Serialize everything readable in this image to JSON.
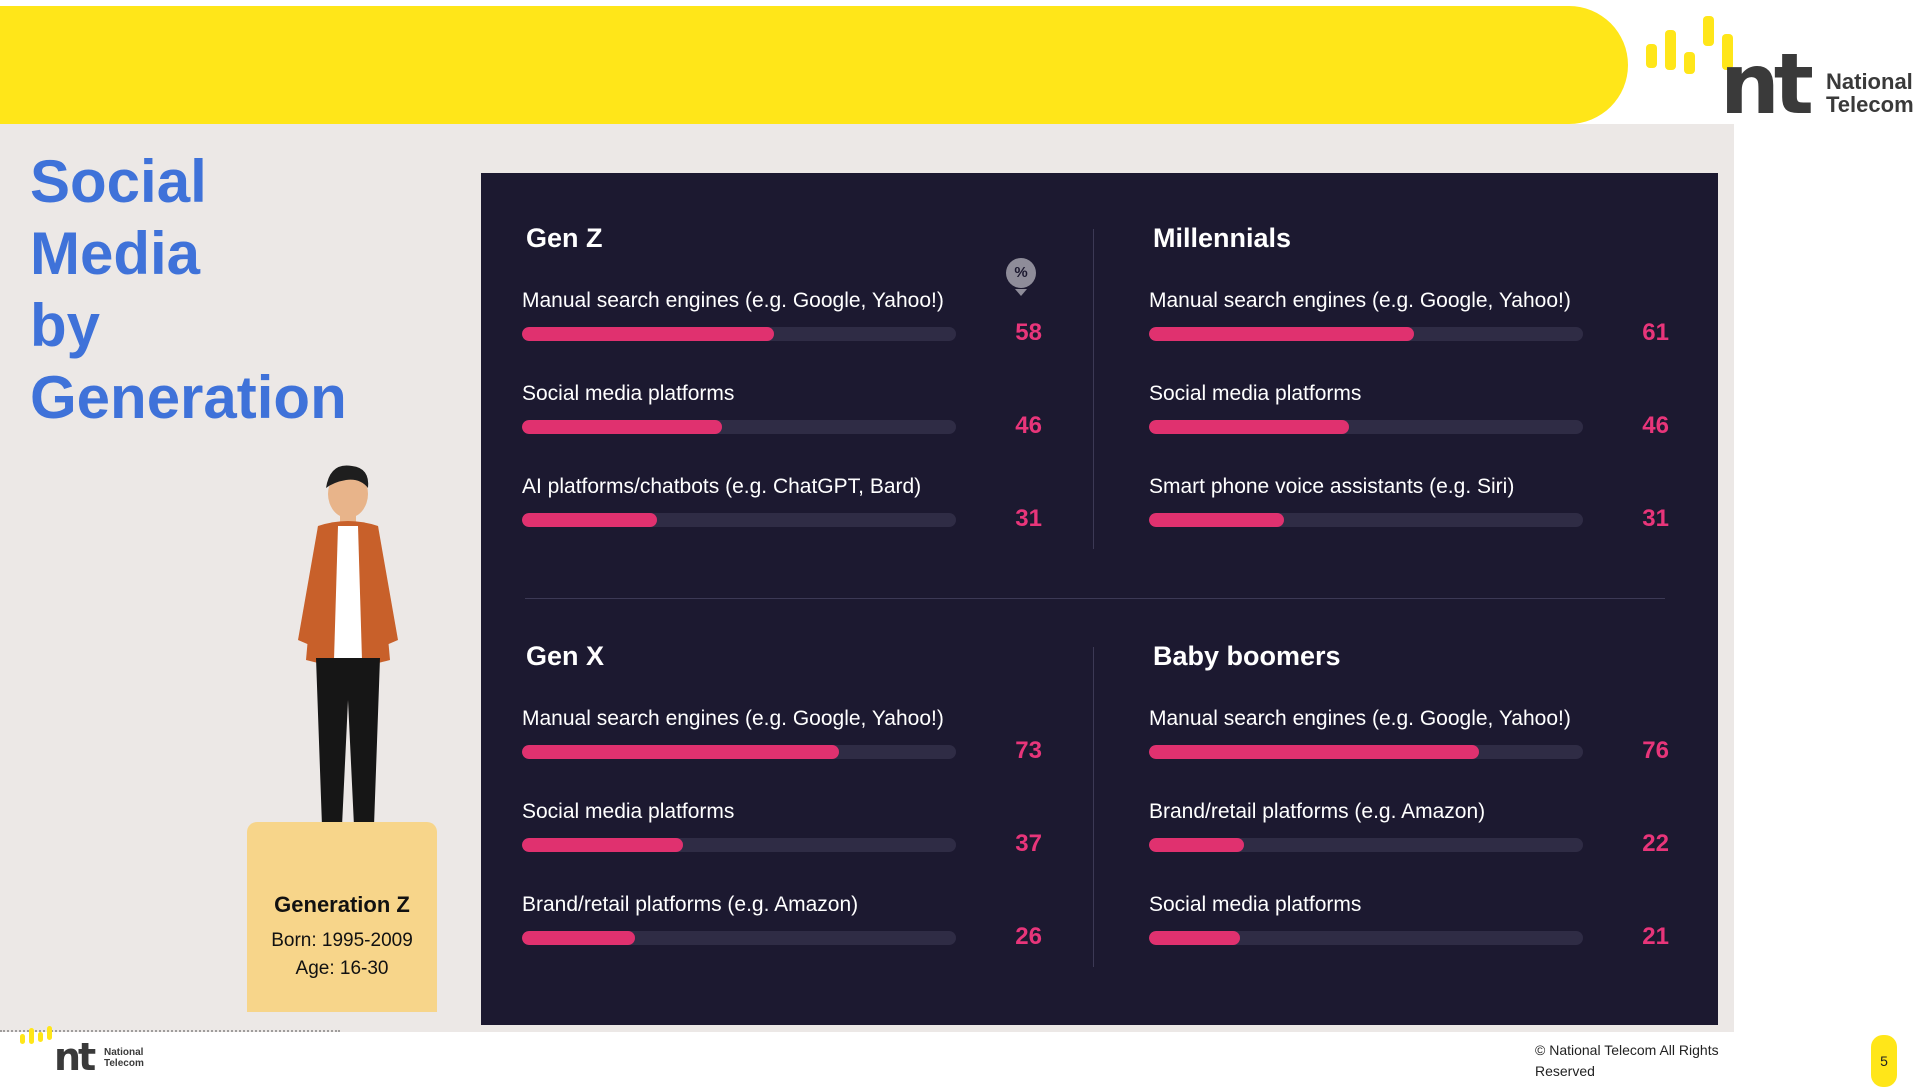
{
  "brand": {
    "line1": "National",
    "line2": "Telecom",
    "mark": "nt"
  },
  "title": {
    "lines": [
      "Social",
      "Media",
      "by",
      "Generation"
    ]
  },
  "persona": {
    "title": "Generation Z",
    "born": "Born: 1995-2009",
    "age": "Age: 16-30"
  },
  "unit_badge": "%",
  "footer": {
    "copyright": "© National Telecom All Rights Reserved",
    "page": "5"
  },
  "colors": {
    "accent_yellow": "#FFE619",
    "title_blue": "#3F72D9",
    "panel_bg": "#1C1930",
    "bar_fill": "#E0316F",
    "bar_track": "#2F2C45",
    "value_pink": "#E8357A"
  },
  "chart_data": [
    {
      "type": "bar",
      "title": "Gen Z",
      "categories": [
        "Manual search engines (e.g. Google, Yahoo!)",
        "Social media platforms",
        "AI platforms/chatbots (e.g. ChatGPT, Bard)"
      ],
      "values": [
        58,
        46,
        31
      ],
      "unit": "%",
      "xlim": [
        0,
        100
      ],
      "orientation": "horizontal"
    },
    {
      "type": "bar",
      "title": "Millennials",
      "categories": [
        "Manual search engines (e.g. Google, Yahoo!)",
        "Social media platforms",
        "Smart phone voice assistants (e.g. Siri)"
      ],
      "values": [
        61,
        46,
        31
      ],
      "unit": "%",
      "xlim": [
        0,
        100
      ],
      "orientation": "horizontal"
    },
    {
      "type": "bar",
      "title": "Gen X",
      "categories": [
        "Manual search engines (e.g. Google, Yahoo!)",
        "Social media platforms",
        "Brand/retail platforms (e.g. Amazon)"
      ],
      "values": [
        73,
        37,
        26
      ],
      "unit": "%",
      "xlim": [
        0,
        100
      ],
      "orientation": "horizontal"
    },
    {
      "type": "bar",
      "title": "Baby boomers",
      "categories": [
        "Manual search engines (e.g. Google, Yahoo!)",
        "Brand/retail platforms (e.g. Amazon)",
        "Social media platforms"
      ],
      "values": [
        76,
        22,
        21
      ],
      "unit": "%",
      "xlim": [
        0,
        100
      ],
      "orientation": "horizontal"
    }
  ]
}
